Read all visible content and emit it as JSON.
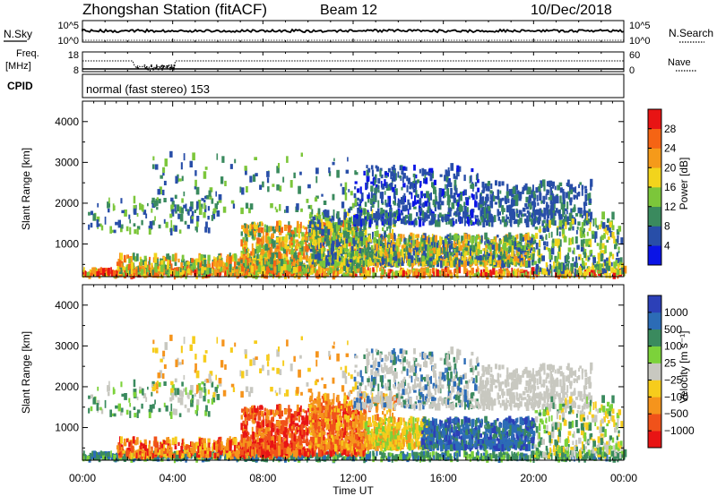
{
  "header": {
    "station": "Zhongshan Station (fitACF)",
    "beam": "Beam 12",
    "date": "10/Dec/2018"
  },
  "noise_panel": {
    "left_label": "N.Sky",
    "right_label": "N.Search",
    "left_ticks": [
      "10^5",
      "10^0"
    ],
    "right_ticks": [
      "10^5",
      "10^0"
    ]
  },
  "freq_panel": {
    "left_label_top": "Freq.",
    "left_label_bottom": "[MHz]",
    "right_label": "Nave",
    "left_ticks": [
      "18",
      "8"
    ],
    "right_ticks": [
      "60",
      "0"
    ]
  },
  "cpid_panel": {
    "label": "CPID",
    "text": "normal (fast stereo) 153"
  },
  "colors": {
    "power_scale": [
      "#0a14e6",
      "#284ea8",
      "#3a8a5e",
      "#7cc63a",
      "#f2d41c",
      "#f59a1a",
      "#f56414",
      "#e81414"
    ],
    "velocity_scale": [
      "#e81414",
      "#f0521a",
      "#f5941c",
      "#f6cc1c",
      "#c8c8c0",
      "#7cd23a",
      "#3a8a5e",
      "#2c6cb6",
      "#2c40b8"
    ]
  },
  "chart_data": [
    {
      "type": "heatmap",
      "quantity": "Power",
      "xlabel": "",
      "ylabel": "Slant Range [km]",
      "x_ticks": [
        "00:00",
        "04:00",
        "08:00",
        "12:00",
        "16:00",
        "20:00",
        "00:00"
      ],
      "y_ticks": [
        "1000",
        "2000",
        "3000",
        "4000"
      ],
      "ylim": [
        200,
        4500
      ],
      "colorbar": {
        "label": "Power [dB]",
        "ticks": [
          "4",
          "8",
          "12",
          "16",
          "20",
          "24",
          "28"
        ]
      }
    },
    {
      "type": "heatmap",
      "quantity": "Velocity",
      "xlabel": "Time UT",
      "ylabel": "Slant Range [km]",
      "x_ticks": [
        "00:00",
        "04:00",
        "08:00",
        "12:00",
        "16:00",
        "20:00",
        "00:00"
      ],
      "y_ticks": [
        "1000",
        "2000",
        "3000",
        "4000"
      ],
      "ylim": [
        200,
        4500
      ],
      "colorbar": {
        "label": "Velocity [m s⁻¹]",
        "ticks": [
          "1000",
          "500",
          "100",
          "25",
          "−25",
          "−100",
          "−500",
          "−1000"
        ]
      }
    }
  ]
}
